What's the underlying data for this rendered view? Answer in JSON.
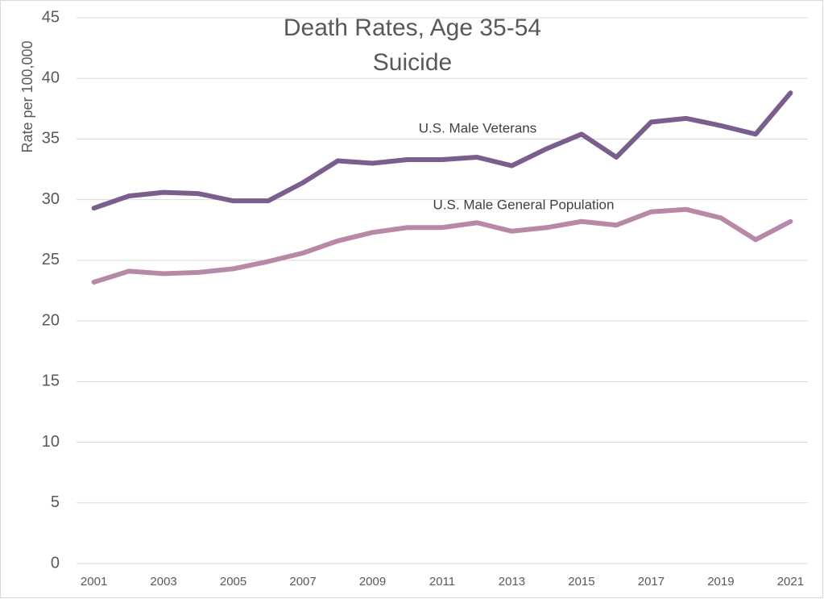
{
  "chart_data": {
    "type": "line",
    "title": "Death Rates, Age 35-54",
    "subtitle": "Suicide",
    "y_label": "Rate per 100,000",
    "x": [
      2001,
      2002,
      2003,
      2004,
      2005,
      2006,
      2007,
      2008,
      2009,
      2010,
      2011,
      2012,
      2013,
      2014,
      2015,
      2016,
      2017,
      2018,
      2019,
      2020,
      2021
    ],
    "series": [
      {
        "name": "U.S. Male Veterans",
        "color": "#7a5e8e",
        "values": [
          29.3,
          30.3,
          30.6,
          30.5,
          29.9,
          29.9,
          31.4,
          33.2,
          33.0,
          33.3,
          33.3,
          33.5,
          32.8,
          34.2,
          35.4,
          33.5,
          36.4,
          36.7,
          36.1,
          35.4,
          38.8
        ]
      },
      {
        "name": "U.S. Male General Population",
        "color": "#b888a8",
        "values": [
          23.2,
          24.1,
          23.9,
          24.0,
          24.3,
          24.9,
          25.6,
          26.6,
          27.3,
          27.7,
          27.7,
          28.1,
          27.4,
          27.7,
          28.2,
          27.9,
          29.0,
          29.2,
          28.5,
          26.7,
          28.2
        ]
      }
    ],
    "xlim": [
      2000.5,
      2021.5
    ],
    "xticks": [
      2001,
      2003,
      2005,
      2007,
      2009,
      2011,
      2013,
      2015,
      2017,
      2019,
      2021
    ],
    "ylim": [
      0,
      45
    ],
    "yticks": [
      0,
      5,
      10,
      15,
      20,
      25,
      30,
      35,
      40,
      45
    ],
    "grid": true
  }
}
